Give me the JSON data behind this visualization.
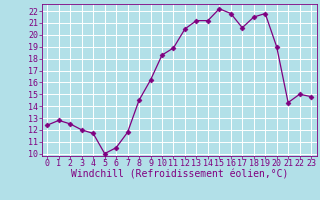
{
  "x": [
    0,
    1,
    2,
    3,
    4,
    5,
    6,
    7,
    8,
    9,
    10,
    11,
    12,
    13,
    14,
    15,
    16,
    17,
    18,
    19,
    20,
    21,
    22,
    23
  ],
  "y": [
    12.4,
    12.8,
    12.5,
    12.0,
    11.7,
    10.0,
    10.5,
    11.8,
    14.5,
    16.2,
    18.3,
    18.9,
    20.5,
    21.2,
    21.2,
    22.2,
    21.8,
    20.6,
    21.5,
    21.8,
    19.0,
    14.3,
    15.0,
    14.8
  ],
  "line_color": "#800080",
  "marker": "D",
  "marker_size": 2.5,
  "bg_color": "#b2e0e8",
  "grid_color": "#ffffff",
  "xlabel": "Windchill (Refroidissement éolien,°C)",
  "xlim": [
    -0.5,
    23.5
  ],
  "ylim": [
    9.8,
    22.6
  ],
  "yticks": [
    10,
    11,
    12,
    13,
    14,
    15,
    16,
    17,
    18,
    19,
    20,
    21,
    22
  ],
  "xticks": [
    0,
    1,
    2,
    3,
    4,
    5,
    6,
    7,
    8,
    9,
    10,
    11,
    12,
    13,
    14,
    15,
    16,
    17,
    18,
    19,
    20,
    21,
    22,
    23
  ],
  "tick_color": "#800080",
  "label_color": "#800080",
  "xlabel_fontsize": 7.0,
  "tick_fontsize": 6.0,
  "spine_color": "#800080"
}
